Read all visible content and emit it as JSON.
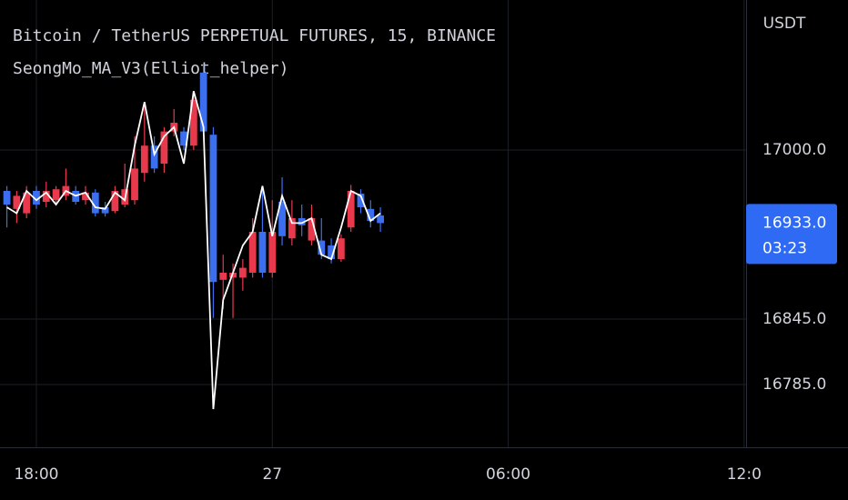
{
  "chart_data": {
    "type": "candlestick",
    "title": "Bitcoin / TetherUS PERPETUAL FUTURES, 15, BINANCE",
    "subtitle": "SeongMo_MA_V3(Elliot_helper)",
    "y_axis_label": "USDT",
    "up_color": "#e8394d",
    "down_color": "#3b6ff0",
    "x": [
      0,
      1,
      2,
      3,
      4,
      5,
      6,
      7,
      8,
      9,
      10,
      11,
      12,
      13,
      14,
      15,
      16,
      17,
      18,
      19,
      20,
      21,
      22,
      23,
      24,
      25,
      26,
      27,
      28,
      29,
      30,
      31,
      32,
      33,
      34,
      35,
      36,
      37,
      38
    ],
    "open": [
      16962.5,
      16946,
      16942,
      16962.5,
      16952.5,
      16954,
      16958,
      16962.5,
      16954,
      16961,
      16947.5,
      16944,
      16950,
      16954,
      16979,
      17004,
      16987.5,
      17017,
      17017,
      17004,
      17071,
      17014,
      16881,
      16883,
      16883,
      16887.5,
      16925,
      16887.5,
      16952.5,
      16919,
      16937.5,
      16917,
      16917,
      16912.5,
      16900,
      16929,
      16960,
      16946,
      16940
    ],
    "high": [
      16967,
      16962.5,
      16967,
      16967,
      16971,
      16967,
      16983,
      16967,
      16967,
      16964,
      16952.5,
      16967,
      16987.5,
      17012.5,
      17044,
      17012.5,
      17021,
      17037.5,
      17021,
      17054,
      17079,
      17021,
      16904,
      16896,
      16900,
      16937.5,
      16967,
      16954,
      16975,
      16954,
      16950,
      16950,
      16937.5,
      16919,
      16922.5,
      16968,
      16964,
      16954,
      16947.5
    ],
    "low": [
      16929,
      16933,
      16937.5,
      16946,
      16947.5,
      16950,
      16954,
      16950,
      16950,
      16939,
      16939,
      16942,
      16947.5,
      16950,
      16971,
      16979,
      16979,
      17012.5,
      17000,
      17000,
      17014,
      16846,
      16854,
      16846,
      16871,
      16883,
      16883,
      16883,
      16912.5,
      16912.5,
      16921,
      16912.5,
      16900,
      16896,
      16897.5,
      16925,
      16942,
      16929,
      16925
    ],
    "close": [
      16950,
      16958,
      16961,
      16950,
      16962.5,
      16964,
      16967,
      16952.5,
      16961,
      16942,
      16942,
      16962.5,
      16964,
      16983,
      17004,
      16983,
      17017,
      17025,
      17004,
      17046,
      17017,
      16879,
      16887.5,
      16887.5,
      16892,
      16925,
      16887.5,
      16925,
      16921,
      16937.5,
      16931,
      16937.5,
      16904,
      16900,
      16919,
      16962.5,
      16947.5,
      16935,
      16933
    ],
    "ma": {
      "color": "#ffffff",
      "values": [
        16947.5,
        16942,
        16962.5,
        16954,
        16961,
        16950,
        16962.5,
        16958,
        16961,
        16947.5,
        16946,
        16961,
        16954,
        17004,
        17044,
        16996,
        17012.5,
        17021,
        16987.5,
        17054,
        17021,
        16762.5,
        16862.5,
        16887.5,
        16912.5,
        16925,
        16967,
        16921,
        16958,
        16933,
        16933,
        16937.5,
        16904,
        16900,
        16929,
        16962.5,
        16958,
        16935,
        16942
      ]
    },
    "ylim": [
      16727.5,
      17137.5
    ],
    "yticks": [
      {
        "value": 16785,
        "label": "16785.0"
      },
      {
        "value": 16845,
        "label": "16845.0"
      },
      {
        "value": 17000,
        "label": "17000.0"
      }
    ],
    "xlim": [
      -0.7,
      75.2
    ],
    "xticks": [
      {
        "value": 3,
        "label": "18:00"
      },
      27,
      {
        "value": 51,
        "label": "06:00"
      },
      {
        "value": 75,
        "label": "12:0"
      }
    ],
    "grid": true,
    "current_price": {
      "value": 16933,
      "label": "16933.0"
    },
    "countdown": "03:23",
    "price_box_color": "#2f6af5"
  }
}
